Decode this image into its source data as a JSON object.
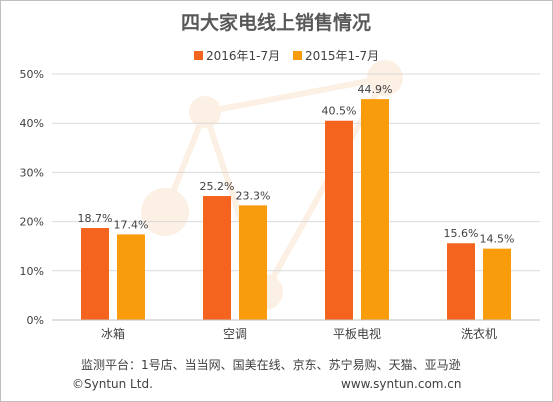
{
  "chart_data": {
    "type": "bar",
    "title": "四大家电线上销售情况",
    "categories": [
      "冰箱",
      "空调",
      "平板电视",
      "洗衣机"
    ],
    "series": [
      {
        "name": "2016年1-7月",
        "values": [
          18.7,
          25.2,
          40.5,
          15.6
        ],
        "labels": [
          "18.7%",
          "25.2%",
          "40.5%",
          "15.6%"
        ],
        "color": "#f4641e"
      },
      {
        "name": "2015年1-7月",
        "values": [
          17.4,
          23.3,
          44.9,
          14.5
        ],
        "labels": [
          "17.4%",
          "23.3%",
          "44.9%",
          "14.5%"
        ],
        "color": "#f99c0c"
      }
    ],
    "ylim": [
      0,
      50
    ],
    "yticks": [
      0,
      10,
      20,
      30,
      40,
      50
    ],
    "ytick_labels": [
      "0%",
      "10%",
      "20%",
      "30%",
      "40%",
      "50%"
    ],
    "xlabel": "",
    "ylabel": "",
    "grid": true,
    "legend": "top"
  },
  "footer": {
    "source": "监测平台：1号店、当当网、国美在线、京东、苏宁易购、天猫、亚马逊",
    "copyright": "©Syntun Ltd.",
    "website": "www.syntun.com.cn"
  }
}
